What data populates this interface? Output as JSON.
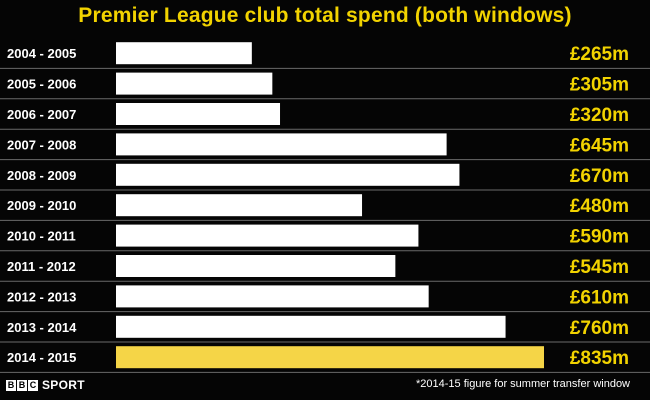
{
  "brand": {
    "logo_letters": [
      "B",
      "B",
      "C"
    ],
    "logo_sport": "SPORT"
  },
  "footnote": "*2014-15 figure for summer transfer window",
  "colors": {
    "background": "#050505",
    "title": "#f2d300",
    "bar": "#ffffff",
    "highlight_bar": "#f5d547",
    "value_text": "#f2d300",
    "row_line": "#6a6a6a",
    "label_text": "#ffffff"
  },
  "chart_data": {
    "type": "bar",
    "orientation": "horizontal",
    "title": "Premier League club total spend (both windows)",
    "categories": [
      "2004 - 2005",
      "2005 - 2006",
      "2006 - 2007",
      "2007 - 2008",
      "2008 - 2009",
      "2009 - 2010",
      "2010 - 2011",
      "2011 - 2012",
      "2012 - 2013",
      "2013 - 2014",
      "2014 - 2015"
    ],
    "values": [
      265,
      305,
      320,
      645,
      670,
      480,
      590,
      545,
      610,
      760,
      835
    ],
    "value_labels": [
      "£265m",
      "£305m",
      "£320m",
      "£645m",
      "£670m",
      "£480m",
      "£590m",
      "£545m",
      "£610m",
      "£760m",
      "£835m"
    ],
    "unit": "£m",
    "highlight_index": 10,
    "axis_visible": false,
    "grid": false,
    "legend": "none"
  }
}
